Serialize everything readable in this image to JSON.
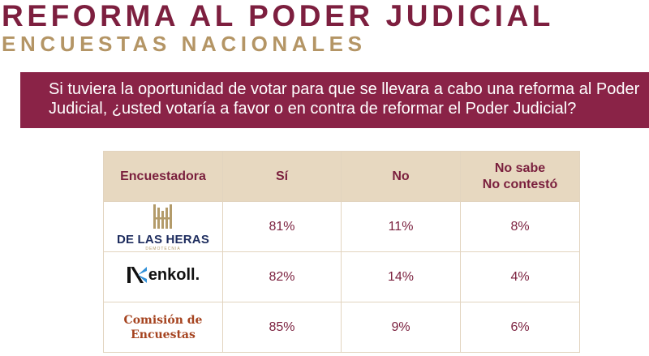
{
  "header": {
    "title": "REFORMA AL PODER JUDICIAL",
    "subtitle": "ENCUESTAS NACIONALES"
  },
  "question": {
    "text": "Si tuviera la oportunidad de votar para que se llevara a cabo una reforma al Poder Judicial, ¿usted votaría a favor o en contra de reformar el Poder Judicial?"
  },
  "table": {
    "headers": {
      "pollster": "Encuestadora",
      "yes": "Sí",
      "no": "No",
      "dont_know_line1": "No sabe",
      "dont_know_line2": "No contestó"
    },
    "rows": [
      {
        "pollster": "DE LAS HERAS",
        "pollster_sub": "DEMOTECNIA",
        "yes": "81%",
        "no": "11%",
        "dont_know": "8%"
      },
      {
        "pollster": "enkoll.",
        "yes": "82%",
        "no": "14%",
        "dont_know": "4%"
      },
      {
        "pollster_line1": "Comisión de",
        "pollster_line2": "Encuestas",
        "yes": "85%",
        "no": "9%",
        "dont_know": "6%"
      }
    ]
  },
  "colors": {
    "maroon": "#8a2347",
    "gold": "#b49565",
    "header_bg": "#e7d8c0"
  }
}
